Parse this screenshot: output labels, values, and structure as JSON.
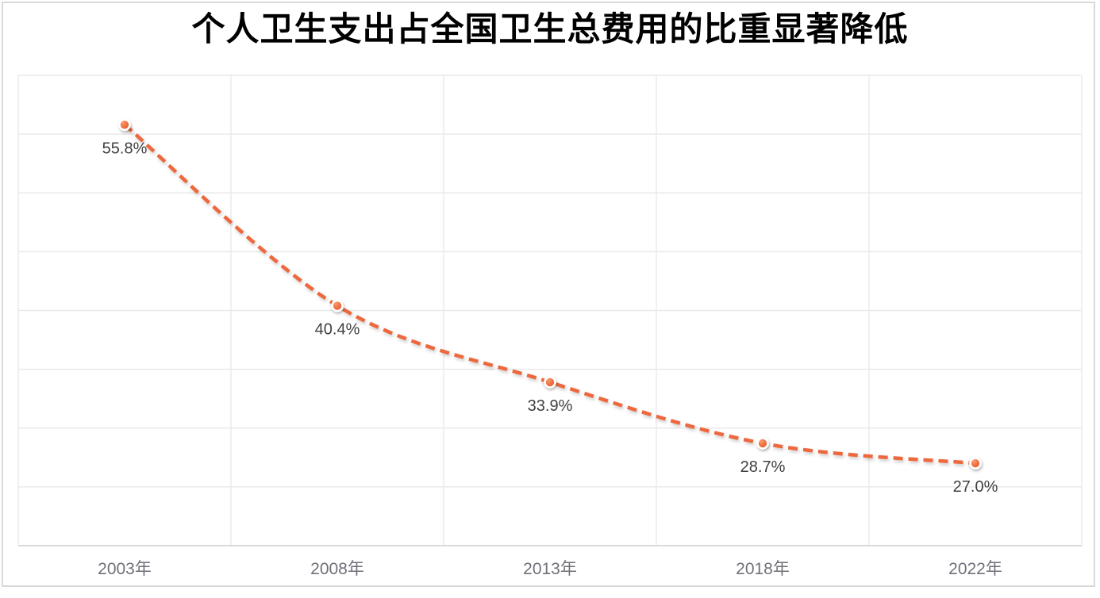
{
  "title": "个人卫生支出占全国卫生总费用的比重显著降低",
  "colors": {
    "accent": "#ED683C",
    "marker_fill_light": "#F89C72",
    "marker_fill_mid": "#EF6E3E",
    "marker_fill_dark": "#E85F2F",
    "marker_ring": "#FFFFFF",
    "grid": "#E9E9E9",
    "axis_line": "#D6D6D6",
    "frame": "#D9D9D9",
    "data_label": "#404040",
    "tick_label": "#70707A",
    "title_color": "#000000",
    "background": "#FFFFFF"
  },
  "chart_data": {
    "type": "line",
    "title": "个人卫生支出占全国卫生总费用的比重显著降低",
    "categories": [
      "2003年",
      "2008年",
      "2013年",
      "2018年",
      "2022年"
    ],
    "values": [
      55.8,
      40.4,
      33.9,
      28.7,
      27.0
    ],
    "data_labels": [
      "55.8%",
      "40.4%",
      "33.9%",
      "28.7%",
      "27.0%"
    ],
    "series_name": "个人卫生支出占全国卫生总费用的比重",
    "xlabel": "",
    "ylabel": "",
    "ylim": [
      20,
      60
    ],
    "y_grid_step": 5,
    "grid": true,
    "legend_position": "none",
    "line_style": "dashed",
    "smooth": true,
    "data_label_position": "below"
  }
}
